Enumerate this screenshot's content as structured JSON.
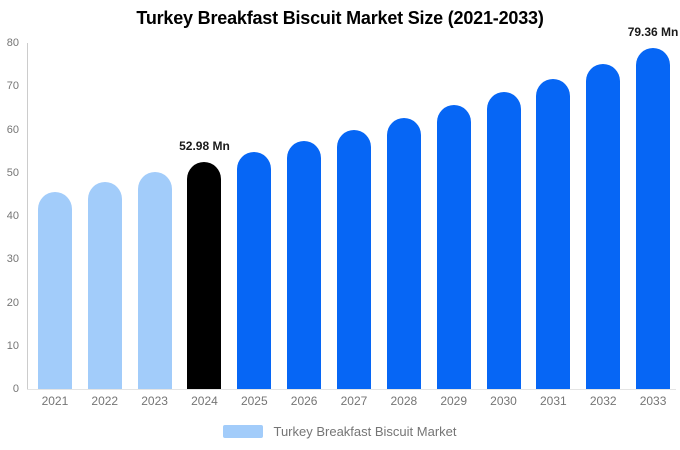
{
  "title": "Turkey Breakfast Biscuit Market Size (2021-2033)",
  "legend": {
    "label": "Turkey Breakfast Biscuit Market",
    "swatch_color": "#a2ccfa"
  },
  "colors": {
    "historical_bar": "#a2ccfa",
    "base_year_bar": "#000000",
    "forecast_bar": "#0666f5",
    "axis_label": "#757575",
    "axis_line": "#cccccc",
    "value_label": "#1a1a1a",
    "title": "#000000",
    "background": "#ffffff"
  },
  "chart_data": {
    "type": "bar",
    "title": "Turkey Breakfast Biscuit Market Size (2021-2033)",
    "xlabel": "",
    "ylabel": "",
    "unit": "Mn",
    "ylim": [
      0,
      80
    ],
    "yticks": [
      0,
      10,
      20,
      30,
      40,
      50,
      60,
      70,
      80
    ],
    "grid": false,
    "legend_position": "bottom",
    "categories": [
      "2021",
      "2022",
      "2023",
      "2024",
      "2025",
      "2026",
      "2027",
      "2028",
      "2029",
      "2030",
      "2031",
      "2032",
      "2033"
    ],
    "series": [
      {
        "name": "Turkey Breakfast Biscuit Market",
        "values": [
          46.1,
          48.3,
          50.6,
          52.98,
          55.2,
          57.7,
          60.3,
          63.1,
          66.1,
          69.2,
          72.2,
          75.6,
          79.36
        ]
      }
    ],
    "bar_colors": [
      "#a2ccfa",
      "#a2ccfa",
      "#a2ccfa",
      "#000000",
      "#0666f5",
      "#0666f5",
      "#0666f5",
      "#0666f5",
      "#0666f5",
      "#0666f5",
      "#0666f5",
      "#0666f5",
      "#0666f5"
    ],
    "annotations": [
      {
        "category": "2024",
        "text": "52.98 Mn"
      },
      {
        "category": "2033",
        "text": "79.36 Mn"
      }
    ]
  }
}
